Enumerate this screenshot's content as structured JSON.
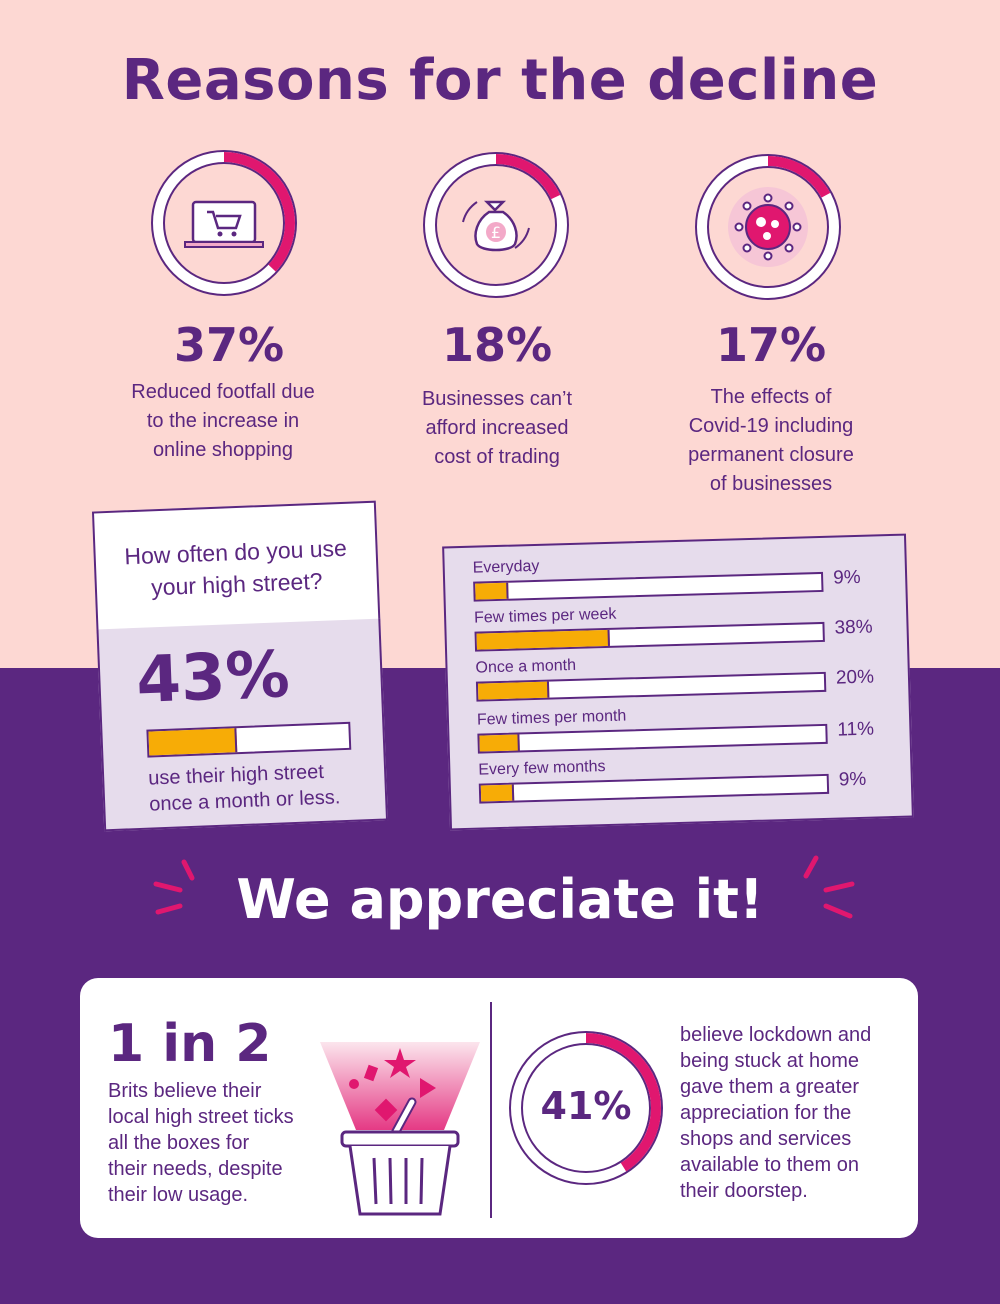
{
  "title": "Reasons for the decline",
  "stats": [
    {
      "percent": "37%",
      "value": 37,
      "desc_lines": [
        "Reduced footfall due",
        "to the increase in",
        "online shopping"
      ],
      "icon": "laptop-cart-icon"
    },
    {
      "percent": "18%",
      "value": 18,
      "desc_lines": [
        "Businesses can’t",
        "afford increased",
        "cost of trading"
      ],
      "icon": "money-bag-icon"
    },
    {
      "percent": "17%",
      "value": 17,
      "desc_lines": [
        "The effects of",
        "Covid-19 including",
        "permanent closure",
        "of businesses"
      ],
      "icon": "virus-icon"
    }
  ],
  "survey": {
    "question_lines": [
      "How often do you use",
      "your high street?"
    ],
    "big_percent": "43%",
    "big_value": 43,
    "caption_lines": [
      "use their high street",
      "once a month or less."
    ]
  },
  "frequency": [
    {
      "label": "Everyday",
      "percent": "9%",
      "value": 9
    },
    {
      "label": "Few times per week",
      "percent": "38%",
      "value": 38
    },
    {
      "label": "Once a month",
      "percent": "20%",
      "value": 20
    },
    {
      "label": "Few times per month",
      "percent": "11%",
      "value": 11
    },
    {
      "label": "Every few months",
      "percent": "9%",
      "value": 9
    }
  ],
  "appreciate": "We appreciate it!",
  "panel": {
    "one_in_two": "1 in 2",
    "brits_lines": [
      "Brits  believe their",
      "local high street ticks",
      "all the boxes for",
      "their needs, despite",
      "their low usage."
    ],
    "ring_percent": "41%",
    "ring_value": 41,
    "lockdown_lines": [
      "believe lockdown and",
      "being stuck at home",
      "gave them a greater",
      "appreciation for the",
      "shops and services",
      "available to them on",
      "their doorstep."
    ]
  },
  "colors": {
    "purple": "#5b2780",
    "pink": "#e0176f",
    "orange": "#f7ac06",
    "blush": "#fdd8d3",
    "lilac": "#e6dcec"
  }
}
